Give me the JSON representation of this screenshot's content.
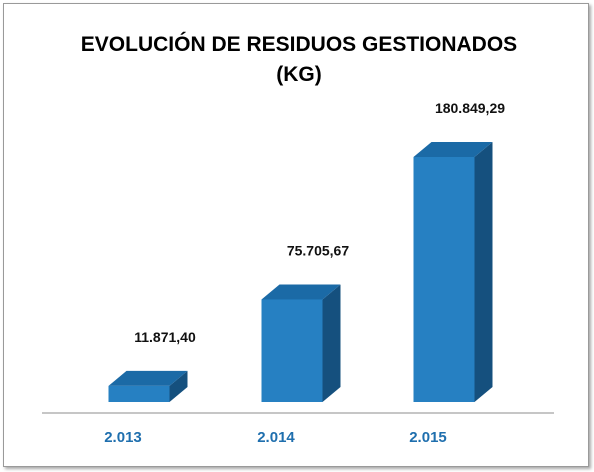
{
  "chart_data": {
    "type": "bar",
    "title": "EVOLUCIÓN DE RESIDUOS GESTIONADOS",
    "subtitle": "(KG)",
    "categories": [
      "2.013",
      "2.014",
      "2.015"
    ],
    "values": [
      11871.4,
      75705.67,
      180849.29
    ],
    "data_labels": [
      "11.871,40",
      "75.705,67",
      "180.849,29"
    ],
    "xlabel": "",
    "ylabel": "",
    "ylim": [
      0,
      180849.29
    ],
    "grid": false,
    "legend": "none",
    "style": "3d-column"
  },
  "colors": {
    "bar_front": "#2680c2",
    "bar_top": "#1b6aa6",
    "bar_side": "#15507e",
    "axis": "#8c8c8c",
    "category_text": "#1f6fae"
  }
}
